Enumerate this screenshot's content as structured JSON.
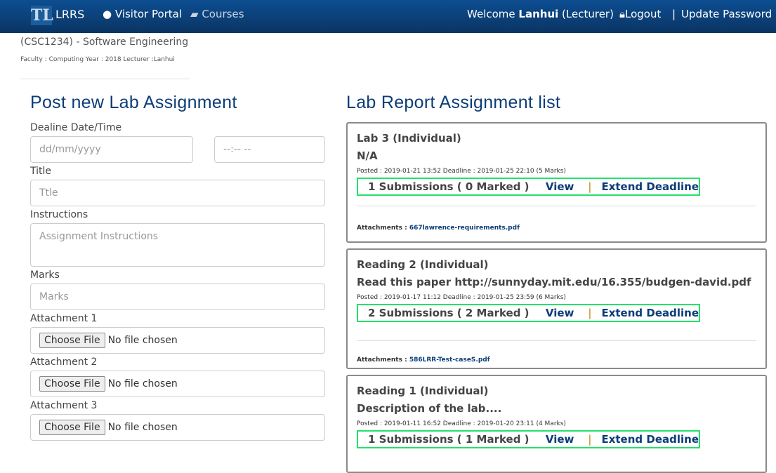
{
  "nav": {
    "brand": "LRRS",
    "visitor": "Visitor Portal",
    "courses": "Courses",
    "welcome": "Welcome",
    "user": "Lanhui",
    "role": "(Lecturer)",
    "logout": "Logout",
    "sep": "|",
    "update": "Update Password"
  },
  "course": {
    "title": "(CSC1234) - Software Engineering",
    "meta": "Faculty : Computing Year : 2018 Lecturer :Lanhui"
  },
  "form": {
    "heading": "Post new Lab Assignment",
    "deadline_label": "Dealine Date/Time",
    "date_placeholder": "dd/mm/yyyy",
    "time_placeholder": "--:-- --",
    "title_label": "Title",
    "title_placeholder": "Ttle",
    "instr_label": "Instructions",
    "instr_placeholder": "Assignment Instructions",
    "marks_label": "Marks",
    "marks_placeholder": "Marks",
    "attachments": [
      {
        "label": "Attachment 1"
      },
      {
        "label": "Attachment 2"
      },
      {
        "label": "Attachment 3"
      }
    ],
    "choose": "Choose File",
    "none": "No file chosen"
  },
  "list": {
    "heading": "Lab Report Assignment list",
    "view": "View",
    "sep": "|",
    "extend": "Extend Deadline",
    "att_label": "Attachments :",
    "items": [
      {
        "title": "Lab 3 (Individual)",
        "desc": "N/A",
        "posted": "Posted : 2019-01-21 13:52 Deadline : 2019-01-25 22:10   (5 Marks)",
        "subs": "1 Submissions ( 0 Marked )",
        "file": "667lawrence-requirements.pdf"
      },
      {
        "title": "Reading 2 (Individual)",
        "desc": "Read this paper http://sunnyday.mit.edu/16.355/budgen-david.pdf",
        "posted": "Posted : 2019-01-17 11:12 Deadline : 2019-01-25 23:59   (6 Marks)",
        "subs": "2 Submissions ( 2 Marked )",
        "file": "586LRR-Test-caseS.pdf"
      },
      {
        "title": "Reading 1 (Individual)",
        "desc": "Description of the lab....",
        "posted": "Posted : 2019-01-11 16:52 Deadline : 2019-01-20 23:11   (4 Marks)",
        "subs": "1 Submissions ( 1 Marked )"
      }
    ]
  }
}
